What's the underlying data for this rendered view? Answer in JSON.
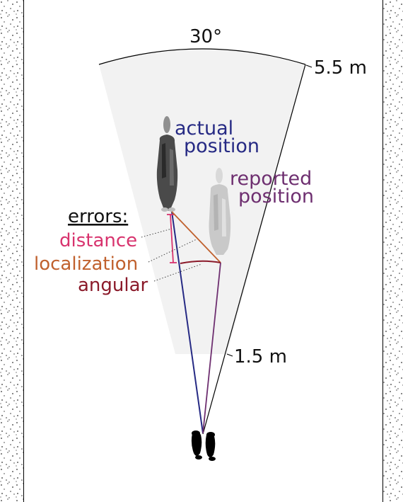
{
  "labels": {
    "angle": "30°",
    "far_range": "5.5 m",
    "near_range": "1.5 m",
    "actual_line1": "actual",
    "actual_line2": "position",
    "reported_line1": "reported",
    "reported_line2": "position",
    "errors_heading": "errors:",
    "error_distance": "distance",
    "error_localization": "localization",
    "error_angular": "angular"
  },
  "colors": {
    "actual": "#262a84",
    "reported": "#6e2f70",
    "distance": "#d8336e",
    "localization": "#c0612e",
    "angular": "#8b1a2a",
    "text": "#111111",
    "fov_fill": "#f2f2f2",
    "wall_dots": "#333333"
  },
  "icons": {
    "observer": "footprints-icon",
    "actual_person": "person-topdown-icon",
    "reported_person": "person-topdown-icon"
  }
}
